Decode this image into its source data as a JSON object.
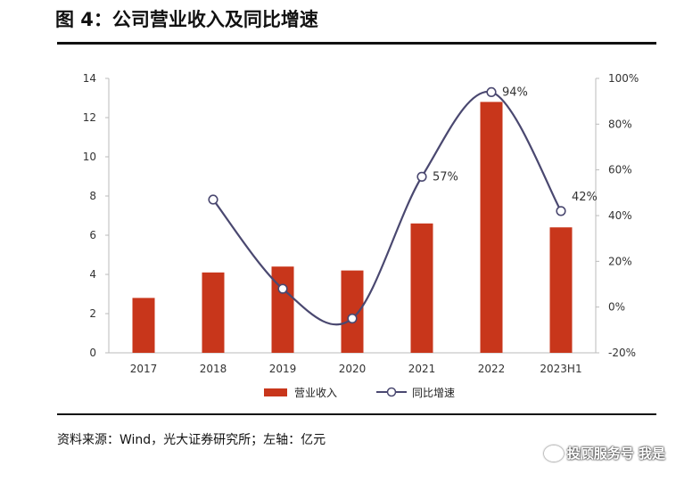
{
  "title": "图 4：公司营业收入及同比增速",
  "source": "资料来源：Wind，光大证券研究所；左轴：亿元",
  "watermark": "投顾服务号 我是",
  "colors": {
    "bar": "#C8361B",
    "line": "#4A4870",
    "marker_fill": "#ffffff"
  },
  "chart_data": {
    "type": "bar",
    "categories": [
      "2017",
      "2018",
      "2019",
      "2020",
      "2021",
      "2022",
      "2023H1"
    ],
    "series": [
      {
        "name": "营业收入",
        "type": "bar",
        "axis": "left",
        "values": [
          2.8,
          4.1,
          4.4,
          4.2,
          6.6,
          12.8,
          6.4
        ]
      },
      {
        "name": "同比增速",
        "type": "line",
        "axis": "right",
        "values": [
          null,
          47,
          8,
          -5,
          57,
          94,
          42
        ]
      }
    ],
    "data_labels": [
      {
        "index": 4,
        "text": "57%"
      },
      {
        "index": 5,
        "text": "94%"
      },
      {
        "index": 6,
        "text": "42%"
      }
    ],
    "left_axis": {
      "min": 0,
      "max": 14,
      "ticks": [
        0,
        2,
        4,
        6,
        8,
        10,
        12,
        14
      ]
    },
    "right_axis": {
      "min": -20,
      "max": 100,
      "ticks": [
        "-20%",
        "0%",
        "20%",
        "40%",
        "60%",
        "80%",
        "100%"
      ],
      "tick_values": [
        -20,
        0,
        20,
        40,
        60,
        80,
        100
      ]
    },
    "legend": [
      "营业收入",
      "同比增速"
    ],
    "legend_position": "bottom"
  }
}
